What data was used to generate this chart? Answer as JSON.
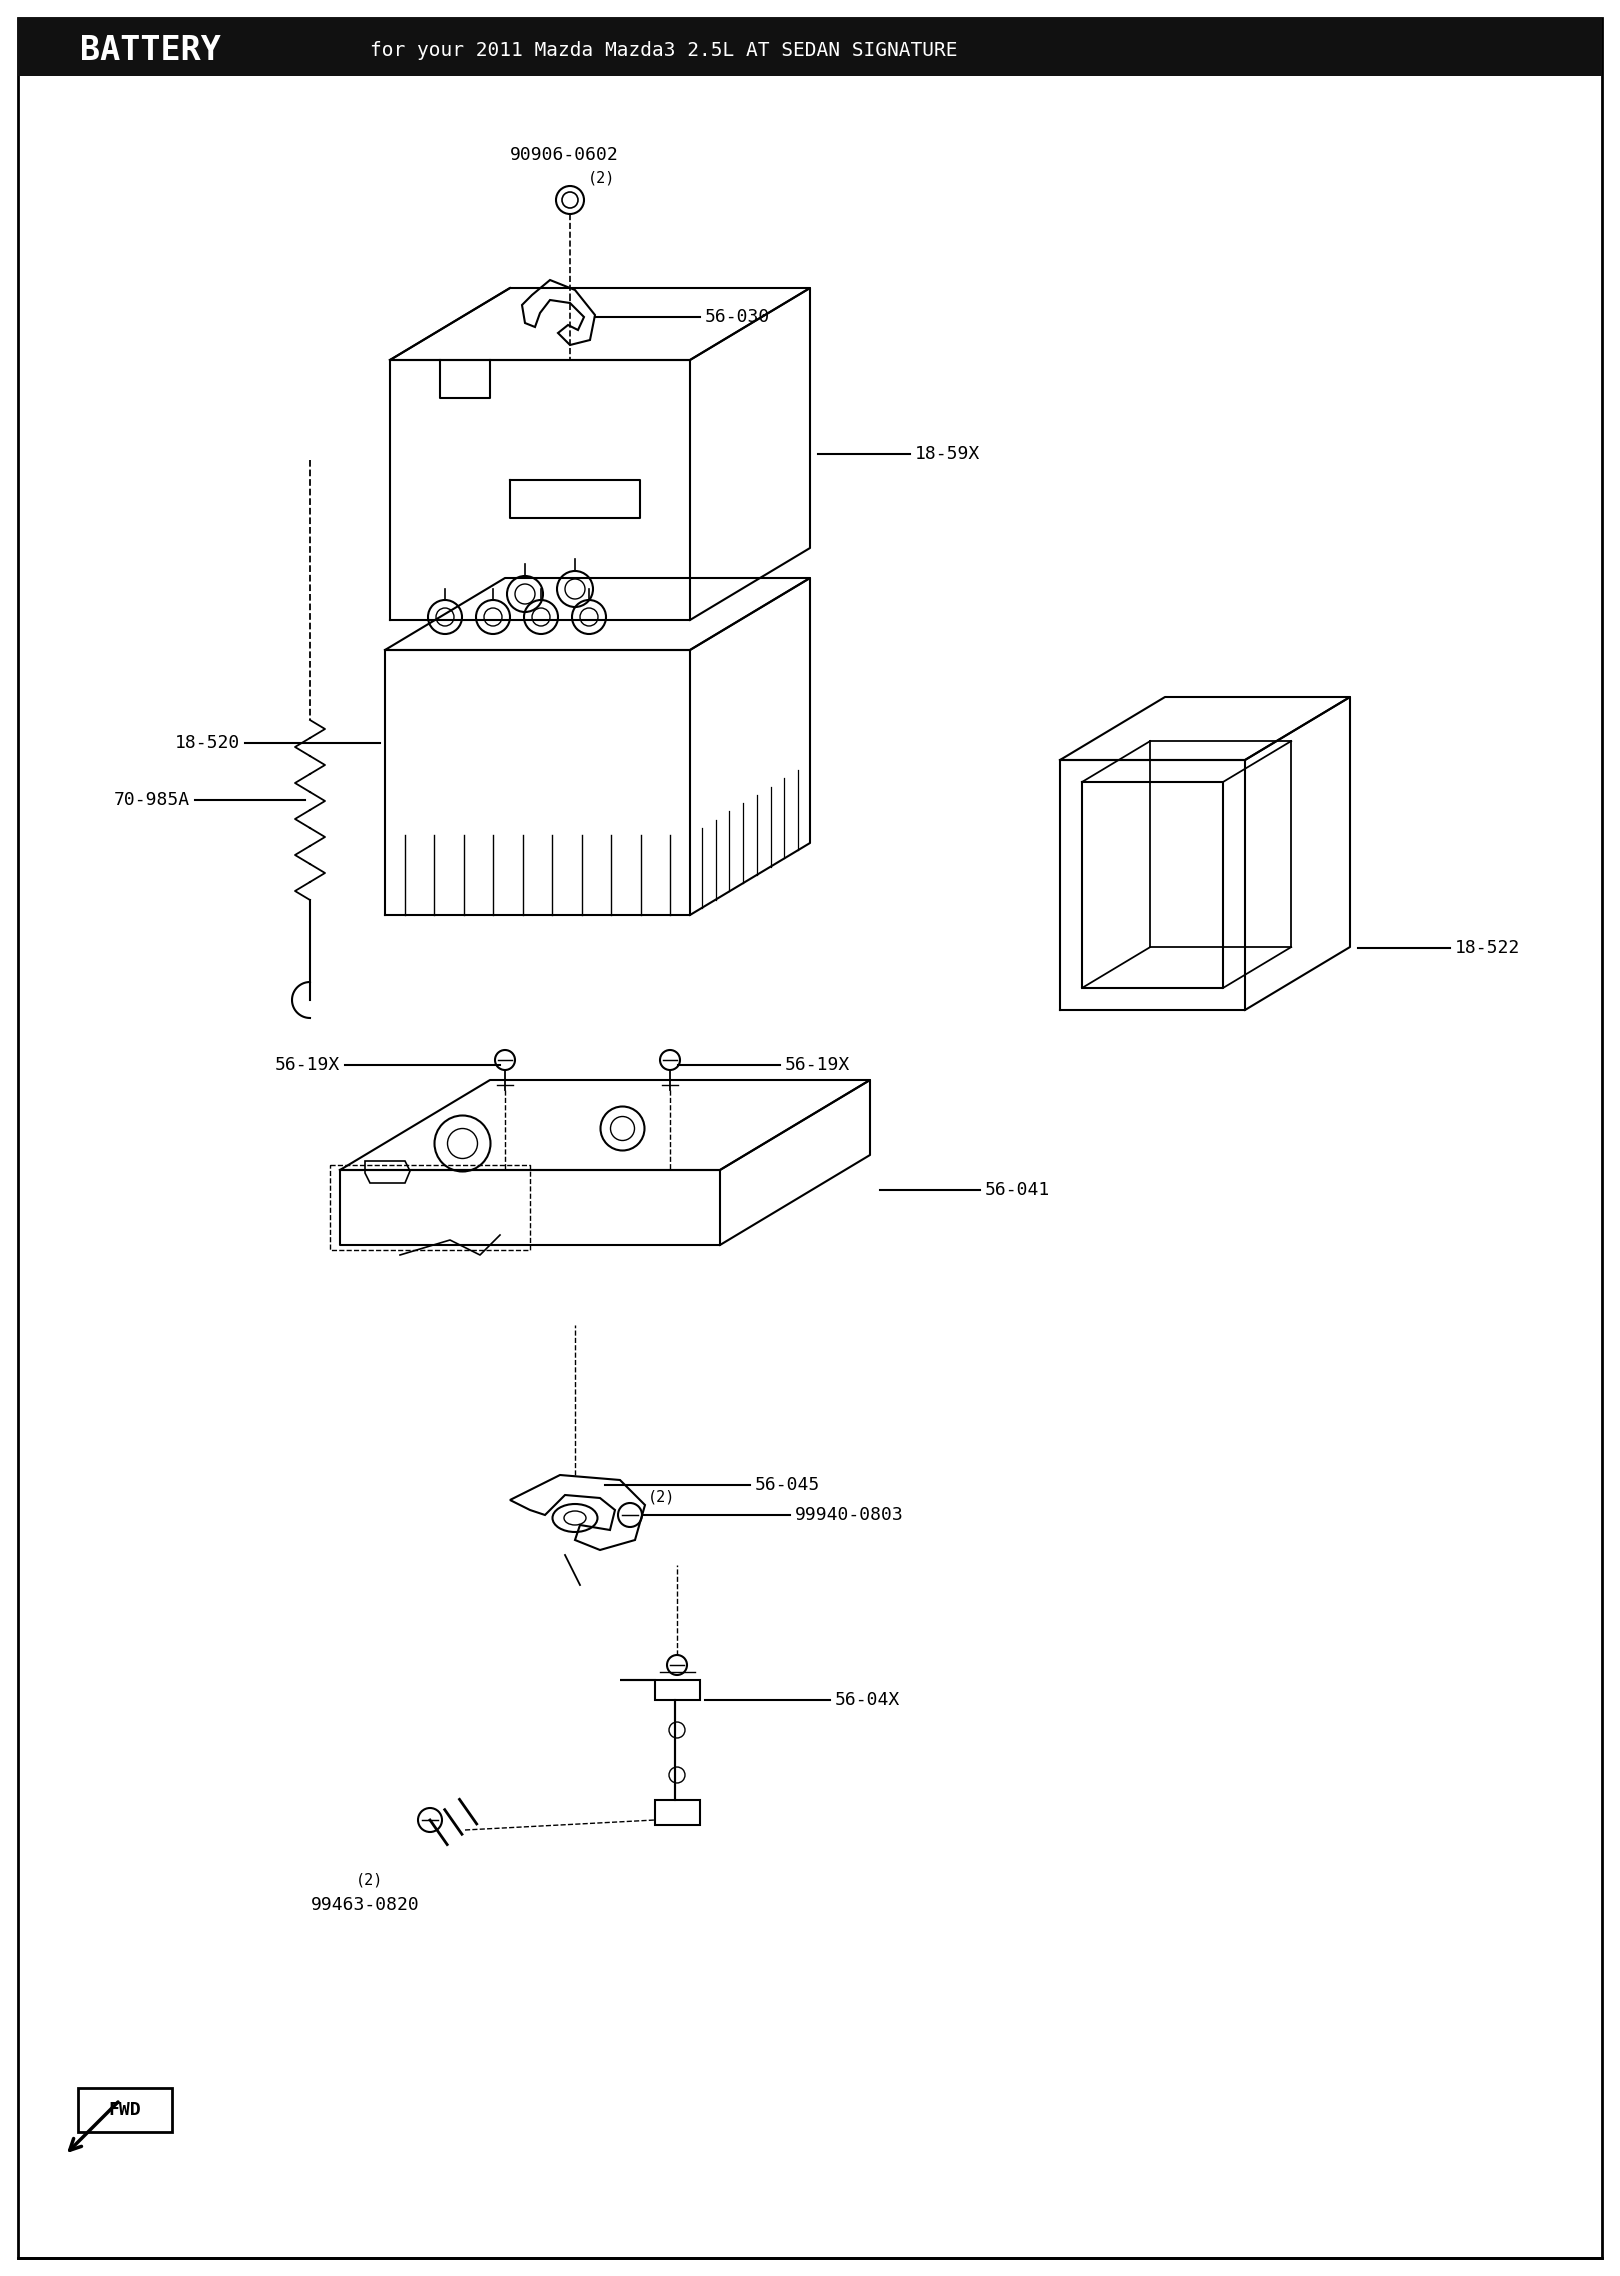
{
  "title": "BATTERY",
  "subtitle": "for your 2011 Mazda Mazda3 2.5L AT SEDAN SIGNATURE",
  "bg": "#ffffff",
  "lw": 1.5,
  "fontsize": 13,
  "parts": {
    "90906-0602": {
      "qty": "(2)"
    },
    "56-030": {},
    "18-59X": {},
    "70-985A": {},
    "18-520": {},
    "18-522": {},
    "56-19X_L": {
      "text": "56-19X"
    },
    "56-19X_R": {
      "text": "56-19X"
    },
    "56-041": {},
    "56-045": {},
    "99940-0803": {
      "qty": "(2)"
    },
    "99463-0820": {
      "qty": "(2)"
    },
    "56-04X": {}
  }
}
